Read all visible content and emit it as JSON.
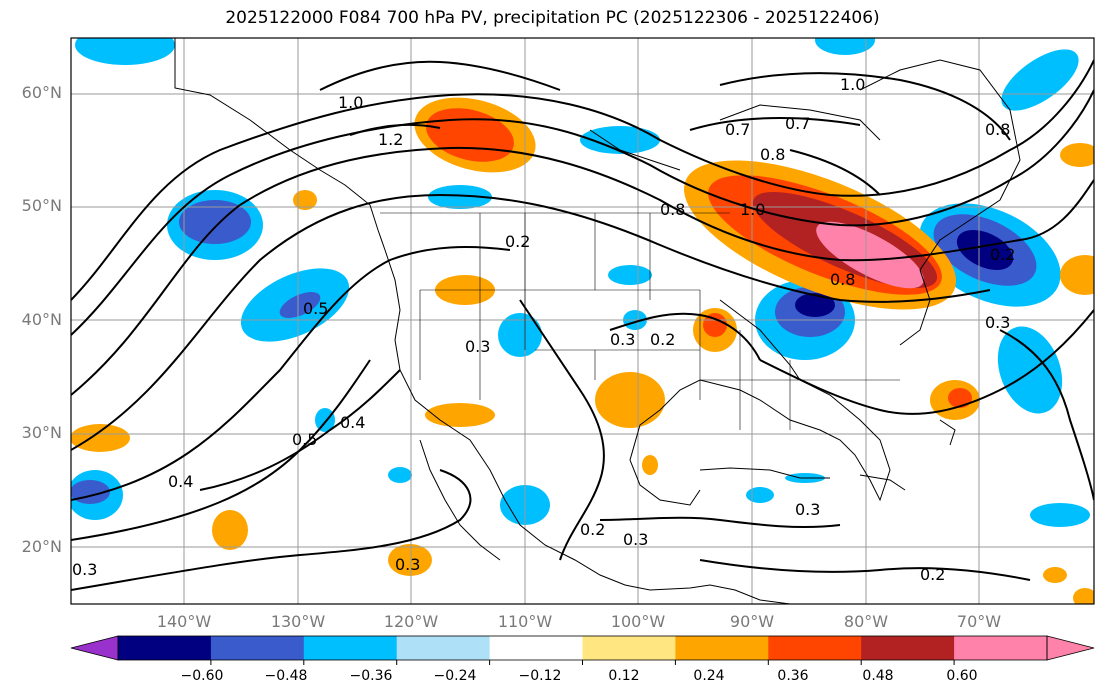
{
  "title": "2025122000 F084 700 hPa PV, precipitation PC (2025122306 - 2025122406)",
  "map": {
    "lat_labels": [
      "60°N",
      "50°N",
      "40°N",
      "30°N",
      "20°N"
    ],
    "lon_labels": [
      "140°W",
      "130°W",
      "120°W",
      "110°W",
      "100°W",
      "90°W",
      "80°W",
      "70°W"
    ],
    "contour_labels": [
      "1.0",
      "1.2",
      "1.0",
      "0.7",
      "0.7",
      "0.8",
      "0.8",
      "1.0",
      "0.8",
      "0.5",
      "0.2",
      "0.3",
      "0.3",
      "0.2",
      "0.5",
      "0.4",
      "0.4",
      "0.2",
      "0.3",
      "0.3",
      "0.3",
      "0.2",
      "0.3",
      "0.2",
      "0.3",
      "0.8"
    ]
  },
  "colorbar": {
    "tick_labels": [
      "−0.60",
      "−0.48",
      "−0.36",
      "−0.24",
      "−0.12",
      "0.12",
      "0.24",
      "0.36",
      "0.48",
      "0.60"
    ],
    "colors": [
      "#9932cc",
      "#000080",
      "#3a5bcc",
      "#00bfff",
      "#aee0f8",
      "#ffffff",
      "#ffe680",
      "#ffa500",
      "#ff4500",
      "#b22222",
      "#ff82ab",
      "#ff82ab"
    ]
  }
}
